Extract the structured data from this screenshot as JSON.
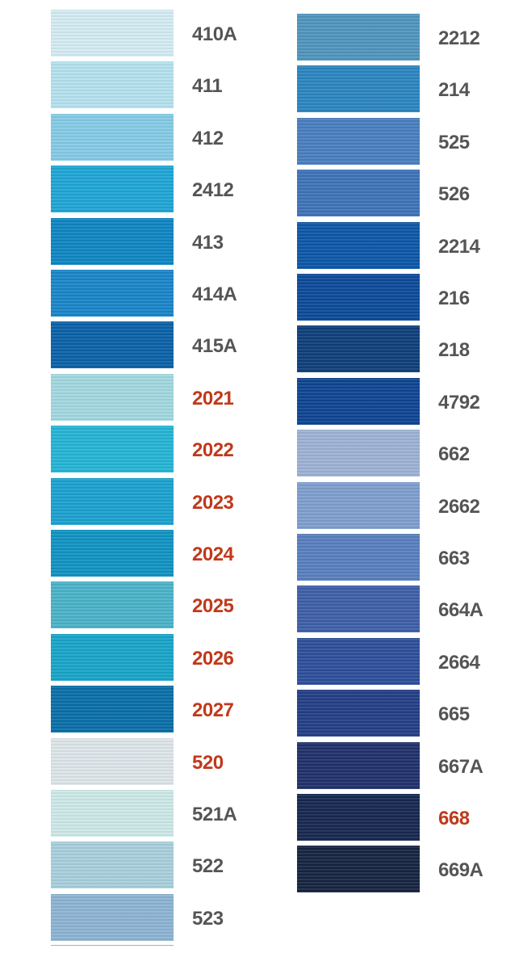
{
  "columns": [
    {
      "swatches": [
        {
          "label": "410A",
          "color": "#d4ecf3",
          "label_color": "#555555"
        },
        {
          "label": "411",
          "color": "#b5e1ee",
          "label_color": "#555555"
        },
        {
          "label": "412",
          "color": "#86cbe6",
          "label_color": "#555555"
        },
        {
          "label": "2412",
          "color": "#1fa6d6",
          "label_color": "#555555"
        },
        {
          "label": "413",
          "color": "#0f86c3",
          "label_color": "#555555"
        },
        {
          "label": "414A",
          "color": "#1a86c9",
          "label_color": "#555555"
        },
        {
          "label": "415A",
          "color": "#0b62a8",
          "label_color": "#555555"
        },
        {
          "label": "2021",
          "color": "#a3d8e0",
          "label_color": "#c0391b"
        },
        {
          "label": "2022",
          "color": "#25b5d5",
          "label_color": "#c0391b"
        },
        {
          "label": "2023",
          "color": "#1ba2d0",
          "label_color": "#c0391b"
        },
        {
          "label": "2024",
          "color": "#1193c3",
          "label_color": "#c0391b"
        },
        {
          "label": "2025",
          "color": "#4bb3c9",
          "label_color": "#c0391b"
        },
        {
          "label": "2026",
          "color": "#19a5c9",
          "label_color": "#c0391b"
        },
        {
          "label": "2027",
          "color": "#0b6fa8",
          "label_color": "#c0391b"
        },
        {
          "label": "520",
          "color": "#dde6ea",
          "label_color": "#c0391b"
        },
        {
          "label": "521A",
          "color": "#cde9e8",
          "label_color": "#555555"
        },
        {
          "label": "522",
          "color": "#a9d0dd",
          "label_color": "#555555"
        },
        {
          "label": "523",
          "color": "#8db4d3",
          "label_color": "#555555"
        }
      ]
    },
    {
      "swatches": [
        {
          "label": "2212",
          "color": "#5096bd",
          "label_color": "#555555"
        },
        {
          "label": "214",
          "color": "#2b86c0",
          "label_color": "#555555"
        },
        {
          "label": "525",
          "color": "#4a7fbf",
          "label_color": "#555555"
        },
        {
          "label": "526",
          "color": "#3f73b8",
          "label_color": "#555555"
        },
        {
          "label": "2214",
          "color": "#0d57a8",
          "label_color": "#555555"
        },
        {
          "label": "216",
          "color": "#0c4b9a",
          "label_color": "#555555"
        },
        {
          "label": "218",
          "color": "#0f3f7a",
          "label_color": "#555555"
        },
        {
          "label": "4792",
          "color": "#0e4592",
          "label_color": "#555555"
        },
        {
          "label": "662",
          "color": "#9db2d5",
          "label_color": "#555555"
        },
        {
          "label": "2662",
          "color": "#7f9fce",
          "label_color": "#555555"
        },
        {
          "label": "663",
          "color": "#587fbf",
          "label_color": "#555555"
        },
        {
          "label": "664A",
          "color": "#3f5fa8",
          "label_color": "#555555"
        },
        {
          "label": "2664",
          "color": "#2e4f9b",
          "label_color": "#555555"
        },
        {
          "label": "665",
          "color": "#243f87",
          "label_color": "#555555"
        },
        {
          "label": "667A",
          "color": "#21316b",
          "label_color": "#555555"
        },
        {
          "label": "668",
          "color": "#172850",
          "label_color": "#c0391b"
        },
        {
          "label": "669A",
          "color": "#172541",
          "label_color": "#555555"
        }
      ]
    }
  ]
}
